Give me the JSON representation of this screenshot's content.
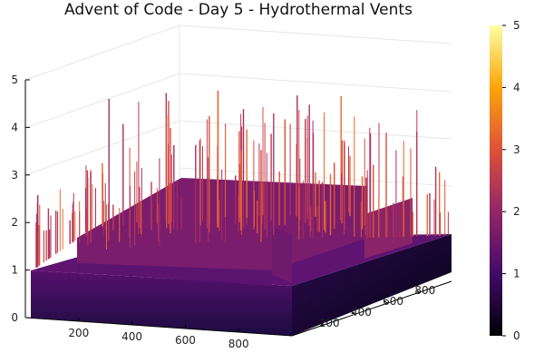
{
  "chart_data": {
    "type": "surface3d",
    "title": "Advent of Code - Day 5 - Hydrothermal Vents",
    "x_axis": {
      "ticks": [
        "200",
        "400",
        "600",
        "800"
      ],
      "range": [
        0,
        1000
      ]
    },
    "y_axis": {
      "ticks": [
        "200",
        "400",
        "600",
        "800"
      ],
      "range": [
        0,
        1000
      ]
    },
    "z_axis": {
      "ticks": [
        "0",
        "1",
        "2",
        "3",
        "4",
        "5"
      ],
      "range": [
        0,
        5
      ]
    },
    "colorbar": {
      "ticks": [
        "0",
        "1",
        "2",
        "3",
        "4",
        "5"
      ],
      "range": [
        0,
        5
      ],
      "colormap": "inferno"
    },
    "levels": [
      {
        "region": "base plateau",
        "value": 1
      },
      {
        "region": "central plateau",
        "value": 2
      },
      {
        "region": "peaks",
        "value": 3
      },
      {
        "region": "max peaks",
        "value": 5
      }
    ],
    "grid": true,
    "legend": "colorbar-right"
  }
}
